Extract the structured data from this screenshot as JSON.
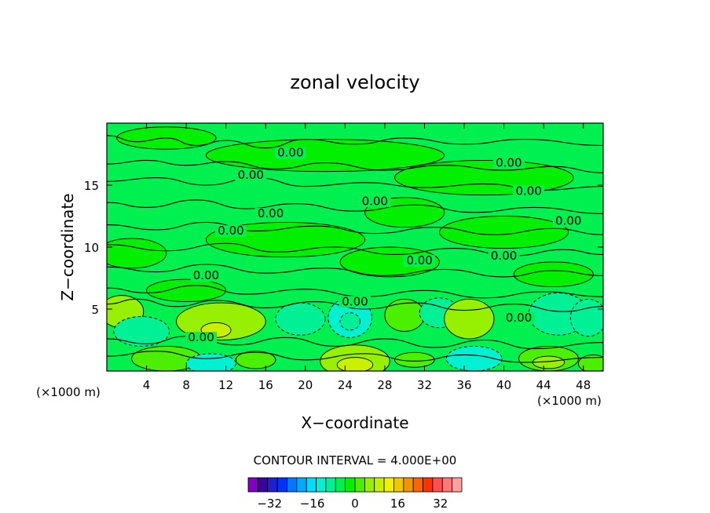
{
  "chart_data": {
    "type": "heatmap",
    "title": "zonal velocity",
    "xlabel": "X−coordinate",
    "ylabel": "Z−coordinate",
    "x_unit_label": "(×1000 m)",
    "y_unit_label": "(×1000 m)",
    "xlim": [
      0,
      50
    ],
    "ylim": [
      0,
      20
    ],
    "x_ticks": [
      4,
      8,
      12,
      16,
      20,
      24,
      28,
      32,
      36,
      40,
      44,
      48
    ],
    "y_ticks": [
      5,
      10,
      15
    ],
    "contour_interval_text": "CONTOUR INTERVAL = 4.000E+00",
    "contour_label_text": "0.00",
    "colorbar": {
      "range": [
        -40,
        40
      ],
      "tick_values": [
        -32,
        -16,
        0,
        16,
        32
      ],
      "tick_labels": [
        "−32",
        "−16",
        "0",
        "16",
        "32"
      ],
      "colors": [
        "#7f00bf",
        "#3c00a0",
        "#1e1ed2",
        "#0032ff",
        "#0078ff",
        "#00aaff",
        "#00dcff",
        "#00f0d2",
        "#00f096",
        "#00f050",
        "#00f000",
        "#4bf000",
        "#96f000",
        "#c8f000",
        "#f0f000",
        "#f0c800",
        "#f09600",
        "#ff6400",
        "#ff3200",
        "#ff5050",
        "#ff7878",
        "#ffa0a0"
      ]
    },
    "field_colors": {
      "background": "#00f050",
      "neutral": "#00f000",
      "slight_positive": "#4bf000",
      "positive": "#96f000",
      "strong_positive": "#c8f000",
      "slight_negative": "#00f096",
      "negative": "#00f0d2"
    },
    "contour_labels": [
      {
        "x": 14.5,
        "z": 15.5,
        "text": "0.00"
      },
      {
        "x": 18.5,
        "z": 17.3,
        "text": "0.00"
      },
      {
        "x": 40.5,
        "z": 16.5,
        "text": "0.00"
      },
      {
        "x": 42.5,
        "z": 14.2,
        "text": "0.00"
      },
      {
        "x": 27.0,
        "z": 13.4,
        "text": "0.00"
      },
      {
        "x": 16.5,
        "z": 12.4,
        "text": "0.00"
      },
      {
        "x": 46.5,
        "z": 11.8,
        "text": "0.00"
      },
      {
        "x": 12.5,
        "z": 11.0,
        "text": "0.00"
      },
      {
        "x": 31.5,
        "z": 8.6,
        "text": "0.00"
      },
      {
        "x": 40.0,
        "z": 9.0,
        "text": "0.00"
      },
      {
        "x": 10.0,
        "z": 7.4,
        "text": "0.00"
      },
      {
        "x": 25.0,
        "z": 5.3,
        "text": "0.00"
      },
      {
        "x": 41.5,
        "z": 4.0,
        "text": "0.00"
      },
      {
        "x": 9.5,
        "z": 2.4,
        "text": "0.00"
      }
    ],
    "blobs": [
      {
        "x": 1.5,
        "z": 4.8,
        "rx": 2.2,
        "rz": 1.3,
        "level": "positive"
      },
      {
        "x": 3.5,
        "z": 3.2,
        "rx": 2.8,
        "rz": 1.2,
        "level": "slight_negative"
      },
      {
        "x": 6.0,
        "z": 1.0,
        "rx": 3.5,
        "rz": 1.0,
        "level": "slight_positive"
      },
      {
        "x": 11.5,
        "z": 4.0,
        "rx": 4.5,
        "rz": 1.5,
        "level": "positive"
      },
      {
        "x": 11.0,
        "z": 3.3,
        "rx": 1.5,
        "rz": 0.6,
        "level": "strong_positive"
      },
      {
        "x": 10.5,
        "z": 0.6,
        "rx": 2.5,
        "rz": 0.8,
        "level": "negative"
      },
      {
        "x": 19.5,
        "z": 4.2,
        "rx": 2.5,
        "rz": 1.3,
        "level": "slight_negative"
      },
      {
        "x": 24.5,
        "z": 4.3,
        "rx": 2.2,
        "rz": 1.6,
        "level": "negative"
      },
      {
        "x": 24.5,
        "z": 4.0,
        "rx": 1.0,
        "rz": 0.7,
        "level": "slight_negative"
      },
      {
        "x": 25.0,
        "z": 0.8,
        "rx": 3.5,
        "rz": 1.3,
        "level": "positive"
      },
      {
        "x": 25.0,
        "z": 0.5,
        "rx": 1.8,
        "rz": 0.6,
        "level": "strong_positive"
      },
      {
        "x": 30.0,
        "z": 4.5,
        "rx": 2.0,
        "rz": 1.3,
        "level": "slight_positive"
      },
      {
        "x": 33.5,
        "z": 4.7,
        "rx": 2.0,
        "rz": 1.2,
        "level": "slight_negative"
      },
      {
        "x": 36.5,
        "z": 4.2,
        "rx": 2.5,
        "rz": 1.6,
        "level": "positive"
      },
      {
        "x": 37.0,
        "z": 1.0,
        "rx": 2.8,
        "rz": 1.0,
        "level": "negative"
      },
      {
        "x": 45.5,
        "z": 4.6,
        "rx": 3.0,
        "rz": 1.7,
        "level": "slight_negative"
      },
      {
        "x": 48.5,
        "z": 4.3,
        "rx": 1.8,
        "rz": 1.5,
        "level": "slight_negative"
      },
      {
        "x": 44.5,
        "z": 1.0,
        "rx": 3.0,
        "rz": 1.0,
        "level": "slight_positive"
      },
      {
        "x": 44.5,
        "z": 0.7,
        "rx": 1.6,
        "rz": 0.5,
        "level": "positive"
      },
      {
        "x": 49.0,
        "z": 0.6,
        "rx": 1.5,
        "rz": 0.7,
        "level": "slight_positive"
      },
      {
        "x": 15.0,
        "z": 0.9,
        "rx": 2.0,
        "rz": 0.7,
        "level": "slight_positive"
      },
      {
        "x": 31.0,
        "z": 0.9,
        "rx": 2.0,
        "rz": 0.6,
        "level": "slight_positive"
      },
      {
        "x": 8.0,
        "z": 6.5,
        "rx": 4.0,
        "rz": 0.9,
        "level": "neutral"
      },
      {
        "x": 28.5,
        "z": 8.8,
        "rx": 5.0,
        "rz": 1.2,
        "level": "neutral"
      },
      {
        "x": 40.0,
        "z": 11.2,
        "rx": 6.5,
        "rz": 1.3,
        "level": "neutral"
      },
      {
        "x": 18.0,
        "z": 10.6,
        "rx": 8.0,
        "rz": 1.4,
        "level": "neutral"
      },
      {
        "x": 30.0,
        "z": 12.8,
        "rx": 4.0,
        "rz": 1.2,
        "level": "neutral"
      },
      {
        "x": 38.0,
        "z": 15.6,
        "rx": 9.0,
        "rz": 1.4,
        "level": "neutral"
      },
      {
        "x": 22.0,
        "z": 17.4,
        "rx": 12.0,
        "rz": 1.3,
        "level": "neutral"
      },
      {
        "x": 6.0,
        "z": 18.8,
        "rx": 5.0,
        "rz": 0.9,
        "level": "neutral"
      },
      {
        "x": 2.5,
        "z": 9.5,
        "rx": 3.5,
        "rz": 1.2,
        "level": "neutral"
      },
      {
        "x": 45.0,
        "z": 7.8,
        "rx": 4.0,
        "rz": 1.0,
        "level": "neutral"
      }
    ],
    "contour_lines": [
      [
        [
          0,
          19.0
        ],
        [
          3,
          18.5
        ],
        [
          6,
          18.8
        ],
        [
          9,
          18.2
        ],
        [
          12,
          18.6
        ],
        [
          16,
          18.0
        ],
        [
          20,
          18.7
        ],
        [
          25,
          18.3
        ],
        [
          30,
          18.8
        ],
        [
          36,
          18.3
        ],
        [
          42,
          18.7
        ],
        [
          50,
          18.2
        ]
      ],
      [
        [
          0,
          16.7
        ],
        [
          4,
          17.0
        ],
        [
          8,
          16.6
        ],
        [
          12,
          16.9
        ],
        [
          17,
          16.3
        ],
        [
          22,
          16.8
        ],
        [
          28,
          16.2
        ],
        [
          34,
          16.6
        ],
        [
          40,
          16.2
        ],
        [
          45,
          16.5
        ],
        [
          50,
          16.0
        ]
      ],
      [
        [
          0,
          15.3
        ],
        [
          5,
          15.6
        ],
        [
          10,
          15.0
        ],
        [
          15,
          15.6
        ],
        [
          20,
          14.9
        ],
        [
          26,
          15.2
        ],
        [
          32,
          14.8
        ],
        [
          38,
          15.1
        ],
        [
          44,
          14.6
        ],
        [
          50,
          14.9
        ]
      ],
      [
        [
          0,
          13.6
        ],
        [
          4,
          13.2
        ],
        [
          9,
          13.8
        ],
        [
          14,
          13.1
        ],
        [
          19,
          13.5
        ],
        [
          25,
          12.9
        ],
        [
          31,
          13.4
        ],
        [
          37,
          12.8
        ],
        [
          43,
          13.2
        ],
        [
          50,
          12.7
        ]
      ],
      [
        [
          0,
          11.8
        ],
        [
          5,
          11.4
        ],
        [
          10,
          12.0
        ],
        [
          15,
          11.3
        ],
        [
          21,
          11.7
        ],
        [
          27,
          11.1
        ],
        [
          33,
          11.6
        ],
        [
          39,
          11.0
        ],
        [
          45,
          11.5
        ],
        [
          50,
          11.0
        ]
      ],
      [
        [
          0,
          10.2
        ],
        [
          6,
          9.7
        ],
        [
          12,
          10.3
        ],
        [
          17,
          9.6
        ],
        [
          23,
          10.0
        ],
        [
          29,
          9.4
        ],
        [
          35,
          9.9
        ],
        [
          41,
          9.3
        ],
        [
          46,
          9.8
        ],
        [
          50,
          9.4
        ]
      ],
      [
        [
          0,
          8.4
        ],
        [
          5,
          8.0
        ],
        [
          10,
          8.6
        ],
        [
          16,
          7.9
        ],
        [
          22,
          8.3
        ],
        [
          28,
          7.7
        ],
        [
          34,
          8.2
        ],
        [
          40,
          7.6
        ],
        [
          45,
          8.1
        ],
        [
          50,
          7.7
        ]
      ],
      [
        [
          0,
          6.7
        ],
        [
          4,
          6.3
        ],
        [
          9,
          6.9
        ],
        [
          14,
          6.2
        ],
        [
          20,
          6.6
        ],
        [
          26,
          6.0
        ],
        [
          32,
          6.5
        ],
        [
          38,
          5.9
        ],
        [
          44,
          6.4
        ],
        [
          50,
          6.0
        ]
      ],
      [
        [
          0,
          5.4
        ],
        [
          3,
          5.8
        ],
        [
          7,
          5.2
        ],
        [
          11,
          5.7
        ],
        [
          16,
          5.1
        ],
        [
          21,
          5.6
        ],
        [
          26,
          5.0
        ],
        [
          31,
          5.5
        ],
        [
          36,
          4.9
        ],
        [
          41,
          5.4
        ],
        [
          46,
          4.8
        ],
        [
          50,
          5.2
        ]
      ],
      [
        [
          0,
          2.6
        ],
        [
          4,
          2.2
        ],
        [
          8,
          2.8
        ],
        [
          13,
          2.1
        ],
        [
          18,
          2.7
        ],
        [
          23,
          2.0
        ],
        [
          28,
          2.6
        ],
        [
          33,
          1.9
        ],
        [
          38,
          2.5
        ],
        [
          43,
          1.8
        ],
        [
          50,
          2.3
        ]
      ],
      [
        [
          0,
          1.2
        ],
        [
          5,
          1.6
        ],
        [
          10,
          1.0
        ],
        [
          15,
          1.5
        ],
        [
          20,
          0.9
        ],
        [
          26,
          1.4
        ],
        [
          31,
          0.8
        ],
        [
          36,
          1.3
        ],
        [
          42,
          0.7
        ],
        [
          50,
          1.1
        ]
      ]
    ]
  }
}
